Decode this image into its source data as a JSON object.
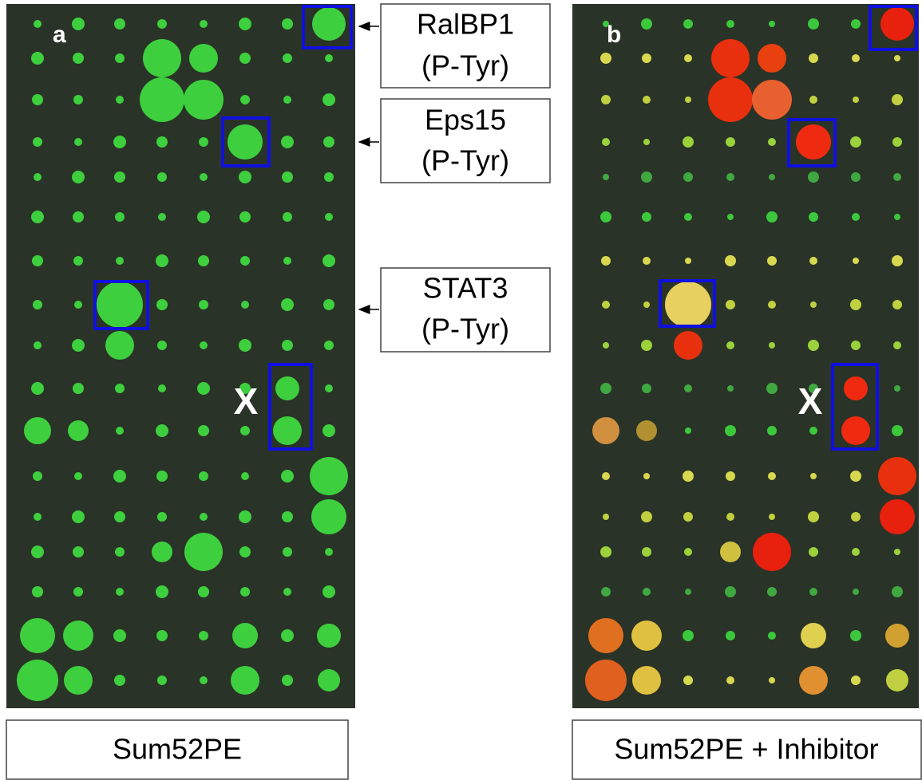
{
  "panels": [
    {
      "letter": "a",
      "marker": "X",
      "caption": "Sum52PE"
    },
    {
      "letter": "b",
      "marker": "X",
      "caption": "Sum52PE + Inhibitor"
    }
  ],
  "callouts": [
    {
      "name": "RalBP1",
      "detail": "(P-Tyr)"
    },
    {
      "name": "Eps15",
      "detail": "(P-Tyr)"
    },
    {
      "name": "STAT3",
      "detail": "(P-Tyr)"
    }
  ]
}
